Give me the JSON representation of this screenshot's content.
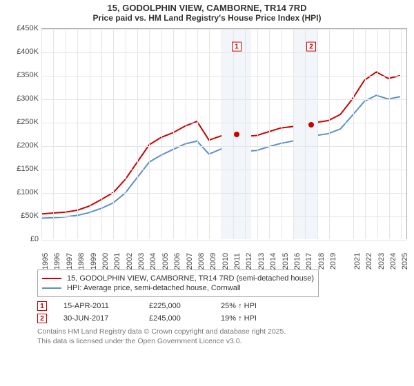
{
  "title_main": "15, GODOLPHIN VIEW, CAMBORNE, TR14 7RD",
  "title_sub": "Price paid vs. HM Land Registry's House Price Index (HPI)",
  "chart": {
    "type": "line",
    "background_color": "#ffffff",
    "grid_color": "#e5e5e5",
    "axis_color": "#aaaaaa",
    "label_color": "#444444",
    "label_fontsize": 11,
    "title_fontsize": 13,
    "x_min": 1995,
    "x_max": 2025.5,
    "y_min": 0,
    "y_max": 450000,
    "y_ticks": [
      0,
      50000,
      100000,
      150000,
      200000,
      250000,
      300000,
      350000,
      400000,
      450000
    ],
    "y_tick_labels": [
      "£0",
      "£50K",
      "£100K",
      "£150K",
      "£200K",
      "£250K",
      "£300K",
      "£350K",
      "£400K",
      "£450K"
    ],
    "x_ticks": [
      1995,
      1996,
      1997,
      1998,
      1999,
      2000,
      2001,
      2002,
      2003,
      2004,
      2005,
      2006,
      2007,
      2008,
      2009,
      2010,
      2011,
      2012,
      2013,
      2014,
      2015,
      2016,
      2017,
      2018,
      2019,
      2021,
      2022,
      2023,
      2024,
      2025
    ],
    "band1": {
      "x_start": 2010,
      "x_end": 2012.5,
      "color": "#f2f6fb"
    },
    "band2": {
      "x_start": 2016,
      "x_end": 2018,
      "color": "#f2f6fb"
    },
    "series_red": {
      "label": "15, GODOLPHIN VIEW, CAMBORNE, TR14 7RD (semi-detached house)",
      "color": "#cc0000",
      "width": 2,
      "points": [
        [
          1995,
          54000
        ],
        [
          1996,
          56000
        ],
        [
          1997,
          58000
        ],
        [
          1998,
          62000
        ],
        [
          1999,
          71000
        ],
        [
          2000,
          85000
        ],
        [
          2001,
          100000
        ],
        [
          2002,
          128000
        ],
        [
          2003,
          165000
        ],
        [
          2004,
          202000
        ],
        [
          2005,
          218000
        ],
        [
          2006,
          228000
        ],
        [
          2007,
          242000
        ],
        [
          2008,
          252000
        ],
        [
          2009,
          212000
        ],
        [
          2010,
          221000
        ],
        [
          2011,
          225000
        ],
        [
          2012,
          220000
        ],
        [
          2013,
          222000
        ],
        [
          2014,
          230000
        ],
        [
          2015,
          238000
        ],
        [
          2016,
          241000
        ],
        [
          2017,
          245000
        ],
        [
          2018,
          250000
        ],
        [
          2019,
          254000
        ],
        [
          2020,
          267000
        ],
        [
          2021,
          300000
        ],
        [
          2022,
          340000
        ],
        [
          2023,
          358000
        ],
        [
          2024,
          344000
        ],
        [
          2025,
          350000
        ]
      ]
    },
    "series_blue": {
      "label": "HPI: Average price, semi-detached house, Cornwall",
      "color": "#5a8fc8",
      "width": 2,
      "points": [
        [
          1995,
          45000
        ],
        [
          1996,
          46000
        ],
        [
          1997,
          48000
        ],
        [
          1998,
          51000
        ],
        [
          1999,
          57000
        ],
        [
          2000,
          66000
        ],
        [
          2001,
          78000
        ],
        [
          2002,
          99000
        ],
        [
          2003,
          132000
        ],
        [
          2004,
          165000
        ],
        [
          2005,
          180000
        ],
        [
          2006,
          192000
        ],
        [
          2007,
          204000
        ],
        [
          2008,
          210000
        ],
        [
          2009,
          182000
        ],
        [
          2010,
          193000
        ],
        [
          2011,
          192000
        ],
        [
          2012,
          188000
        ],
        [
          2013,
          190000
        ],
        [
          2014,
          198000
        ],
        [
          2015,
          205000
        ],
        [
          2016,
          210000
        ],
        [
          2017,
          216000
        ],
        [
          2018,
          222000
        ],
        [
          2019,
          226000
        ],
        [
          2020,
          236000
        ],
        [
          2021,
          265000
        ],
        [
          2022,
          295000
        ],
        [
          2023,
          308000
        ],
        [
          2024,
          300000
        ],
        [
          2025,
          305000
        ]
      ]
    },
    "sale_markers": [
      {
        "num": "1",
        "x": 2011.29,
        "y": 225000,
        "box_y": 400000,
        "color": "#cc0000"
      },
      {
        "num": "2",
        "x": 2017.5,
        "y": 245000,
        "box_y": 400000,
        "color": "#cc0000"
      }
    ]
  },
  "legend": {
    "rows": [
      {
        "color": "#cc0000",
        "label": "15, GODOLPHIN VIEW, CAMBORNE, TR14 7RD (semi-detached house)"
      },
      {
        "color": "#5a8fc8",
        "label": "HPI: Average price, semi-detached house, Cornwall"
      }
    ]
  },
  "sales": [
    {
      "num": "1",
      "color": "#cc0000",
      "date": "15-APR-2011",
      "price": "£225,000",
      "pct": "25% ↑ HPI"
    },
    {
      "num": "2",
      "color": "#cc0000",
      "date": "30-JUN-2017",
      "price": "£245,000",
      "pct": "19% ↑ HPI"
    }
  ],
  "footer_line1": "Contains HM Land Registry data © Crown copyright and database right 2025.",
  "footer_line2": "This data is licensed under the Open Government Licence v3.0."
}
